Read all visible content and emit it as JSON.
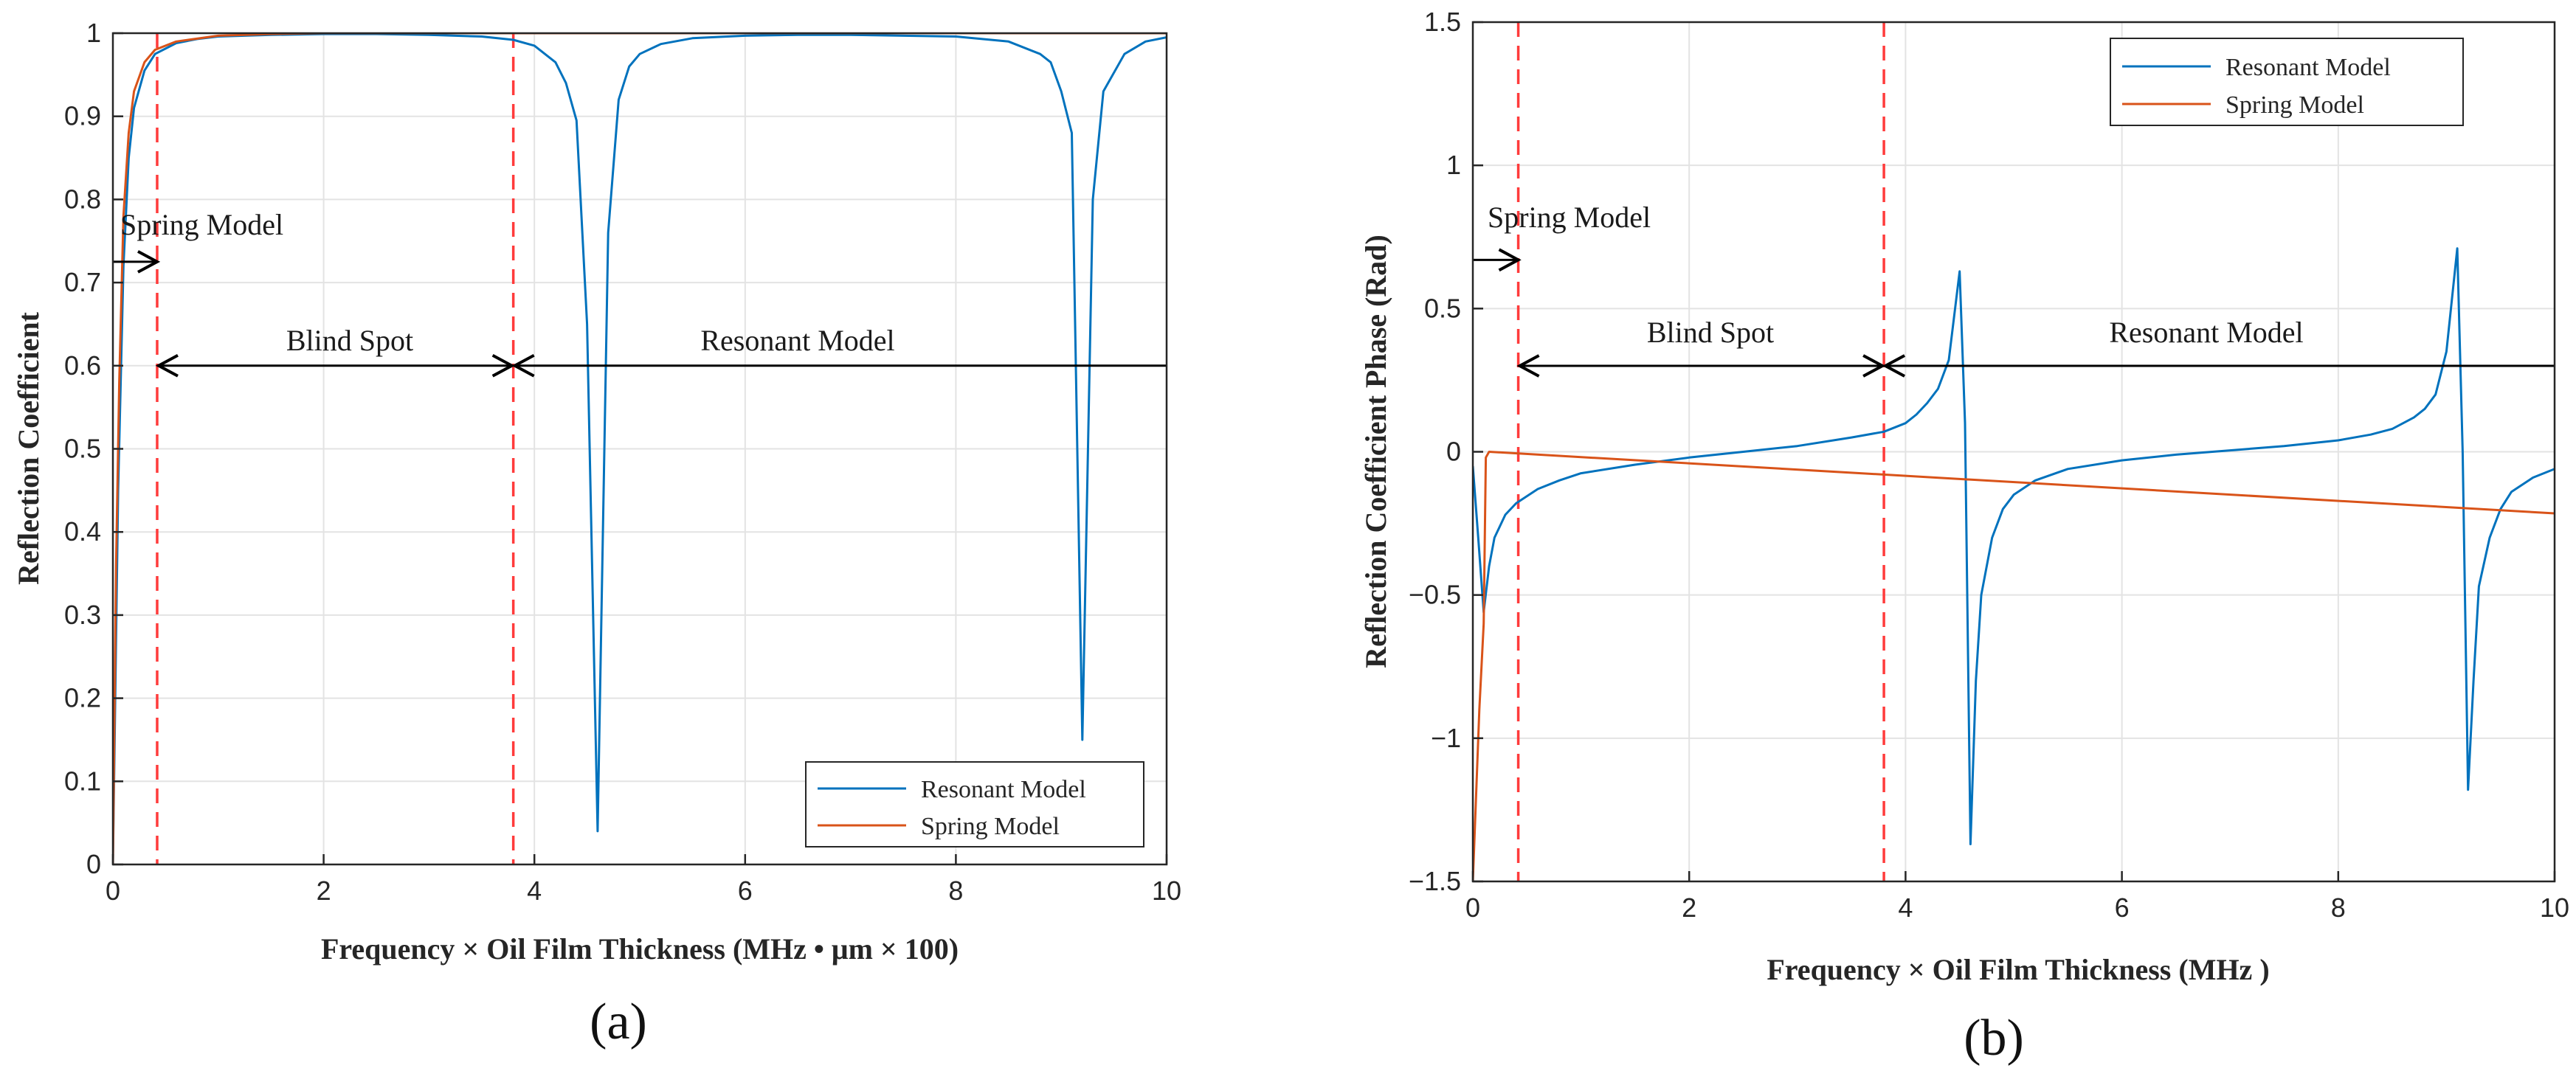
{
  "chart_data": [
    {
      "panel_label": "(a)",
      "type": "line",
      "xlabel": "Frequency × Oil Film Thickness (MHz • μm × 100)",
      "ylabel": "Reflection Coefficient",
      "xlim": [
        0,
        10
      ],
      "ylim": [
        0,
        1
      ],
      "xticks": [
        "0",
        "2",
        "4",
        "6",
        "8",
        "10"
      ],
      "yticks": [
        "0",
        "0.1",
        "0.2",
        "0.3",
        "0.4",
        "0.5",
        "0.6",
        "0.7",
        "0.8",
        "0.9",
        "1"
      ],
      "grid": true,
      "legend_position": "bottom-right",
      "series": [
        {
          "name": "Resonant Model",
          "color": "#0072BD",
          "points": [
            [
              0,
              0
            ],
            [
              0.05,
              0.45
            ],
            [
              0.1,
              0.72
            ],
            [
              0.15,
              0.85
            ],
            [
              0.2,
              0.91
            ],
            [
              0.3,
              0.955
            ],
            [
              0.4,
              0.975
            ],
            [
              0.6,
              0.988
            ],
            [
              0.8,
              0.993
            ],
            [
              1,
              0.996
            ],
            [
              1.5,
              0.998
            ],
            [
              2,
              0.999
            ],
            [
              2.5,
              0.999
            ],
            [
              3,
              0.998
            ],
            [
              3.5,
              0.996
            ],
            [
              3.8,
              0.992
            ],
            [
              4,
              0.985
            ],
            [
              4.2,
              0.965
            ],
            [
              4.3,
              0.94
            ],
            [
              4.4,
              0.895
            ],
            [
              4.5,
              0.65
            ],
            [
              4.6,
              0.04
            ],
            [
              4.7,
              0.76
            ],
            [
              4.8,
              0.92
            ],
            [
              4.9,
              0.96
            ],
            [
              5,
              0.975
            ],
            [
              5.2,
              0.987
            ],
            [
              5.5,
              0.994
            ],
            [
              6,
              0.997
            ],
            [
              6.5,
              0.998
            ],
            [
              7,
              0.998
            ],
            [
              7.5,
              0.997
            ],
            [
              8,
              0.996
            ],
            [
              8.5,
              0.99
            ],
            [
              8.8,
              0.975
            ],
            [
              8.9,
              0.965
            ],
            [
              9,
              0.93
            ],
            [
              9.1,
              0.88
            ],
            [
              9.2,
              0.15
            ],
            [
              9.3,
              0.8
            ],
            [
              9.4,
              0.93
            ],
            [
              9.6,
              0.975
            ],
            [
              9.8,
              0.99
            ],
            [
              10,
              0.995
            ]
          ]
        },
        {
          "name": "Spring Model",
          "color": "#D95319",
          "points": [
            [
              0,
              0
            ],
            [
              0.03,
              0.36
            ],
            [
              0.06,
              0.58
            ],
            [
              0.1,
              0.78
            ],
            [
              0.15,
              0.88
            ],
            [
              0.2,
              0.93
            ],
            [
              0.3,
              0.965
            ],
            [
              0.4,
              0.98
            ],
            [
              0.6,
              0.99
            ],
            [
              1,
              0.997
            ],
            [
              1.5,
              0.999
            ],
            [
              2,
              1
            ],
            [
              10,
              1
            ]
          ]
        }
      ],
      "annotations": [
        {
          "text": "Spring Model",
          "x": 0.05,
          "y": 0.77
        },
        {
          "text": "Blind Spot",
          "x": 2.25,
          "y": 0.625
        },
        {
          "text": "Resonant Model",
          "x": 6.5,
          "y": 0.625
        }
      ],
      "vlines": [
        0.42,
        3.8
      ],
      "arrow_rows": {
        "spring_y": 0.725,
        "blind_resonant_y": 0.6
      }
    },
    {
      "panel_label": "(b)",
      "type": "line",
      "xlabel": "Frequency × Oil Film Thickness (MHz )",
      "ylabel": "Reflection Coefficient Phase (Rad)",
      "xlim": [
        0,
        10
      ],
      "ylim": [
        -1.5,
        1.5
      ],
      "xticks": [
        "0",
        "2",
        "4",
        "6",
        "8",
        "10"
      ],
      "yticks": [
        "−1.5",
        "−1",
        "−0.5",
        "0",
        "0.5",
        "1",
        "1.5"
      ],
      "grid": true,
      "legend_position": "top-right",
      "series": [
        {
          "name": "Resonant Model",
          "color": "#0072BD",
          "points": [
            [
              0,
              -0.05
            ],
            [
              0.05,
              -0.3
            ],
            [
              0.1,
              -0.56
            ],
            [
              0.15,
              -0.4
            ],
            [
              0.2,
              -0.3
            ],
            [
              0.3,
              -0.22
            ],
            [
              0.4,
              -0.18
            ],
            [
              0.6,
              -0.13
            ],
            [
              0.8,
              -0.1
            ],
            [
              1,
              -0.075
            ],
            [
              1.5,
              -0.045
            ],
            [
              2,
              -0.02
            ],
            [
              2.5,
              0
            ],
            [
              3,
              0.02
            ],
            [
              3.5,
              0.05
            ],
            [
              3.8,
              0.07
            ],
            [
              4,
              0.1
            ],
            [
              4.1,
              0.13
            ],
            [
              4.2,
              0.17
            ],
            [
              4.3,
              0.22
            ],
            [
              4.4,
              0.32
            ],
            [
              4.5,
              0.63
            ],
            [
              4.55,
              0.1
            ],
            [
              4.6,
              -1.37
            ],
            [
              4.65,
              -0.8
            ],
            [
              4.7,
              -0.5
            ],
            [
              4.8,
              -0.3
            ],
            [
              4.9,
              -0.2
            ],
            [
              5,
              -0.15
            ],
            [
              5.2,
              -0.1
            ],
            [
              5.5,
              -0.06
            ],
            [
              6,
              -0.03
            ],
            [
              6.5,
              -0.01
            ],
            [
              7,
              0.005
            ],
            [
              7.5,
              0.02
            ],
            [
              8,
              0.04
            ],
            [
              8.3,
              0.06
            ],
            [
              8.5,
              0.08
            ],
            [
              8.7,
              0.12
            ],
            [
              8.8,
              0.15
            ],
            [
              8.9,
              0.2
            ],
            [
              9,
              0.35
            ],
            [
              9.1,
              0.71
            ],
            [
              9.15,
              0
            ],
            [
              9.2,
              -1.18
            ],
            [
              9.25,
              -0.8
            ],
            [
              9.3,
              -0.47
            ],
            [
              9.4,
              -0.3
            ],
            [
              9.5,
              -0.2
            ],
            [
              9.6,
              -0.14
            ],
            [
              9.8,
              -0.09
            ],
            [
              10,
              -0.06
            ]
          ]
        },
        {
          "name": "Spring Model",
          "color": "#D95319",
          "points": [
            [
              0,
              -1.5
            ],
            [
              0.03,
              -1.2
            ],
            [
              0.06,
              -0.9
            ],
            [
              0.1,
              -0.6
            ],
            [
              0.12,
              -0.02
            ],
            [
              0.15,
              0
            ],
            [
              10,
              -0.215
            ]
          ]
        }
      ],
      "annotations": [
        {
          "text": "Spring Model",
          "x": 0.15,
          "y": 0.79
        },
        {
          "text": "Blind Spot",
          "x": 2.2,
          "y": 0.39
        },
        {
          "text": "Resonant Model",
          "x": 6.65,
          "y": 0.39
        }
      ],
      "vlines": [
        0.42,
        3.8
      ],
      "arrow_rows": {
        "spring_y": 0.67,
        "blind_resonant_y": 0.3
      }
    }
  ]
}
